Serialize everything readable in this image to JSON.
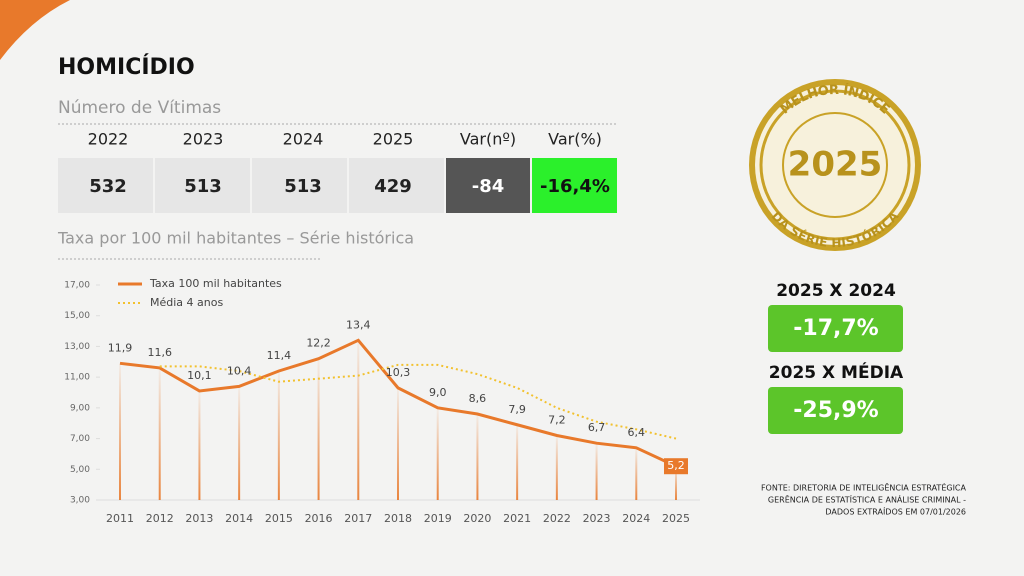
{
  "header": {
    "title": "HOMICÍDIO",
    "subtitle": "Número de Vítimas"
  },
  "table": {
    "columns": [
      "2022",
      "2023",
      "2024",
      "2025",
      "Var(nº)",
      "Var(%)"
    ],
    "row": [
      532,
      513,
      513,
      429,
      -84,
      "-16,4%"
    ]
  },
  "chart_title": "Taxa por 100 mil habitantes – Série histórica",
  "chart_data": {
    "type": "line",
    "categories": [
      "2011",
      "2012",
      "2013",
      "2014",
      "2015",
      "2016",
      "2017",
      "2018",
      "2019",
      "2020",
      "2021",
      "2022",
      "2023",
      "2024",
      "2025"
    ],
    "series": [
      {
        "name": "Taxa 100 mil habitantes",
        "color": "#e8792b",
        "style": "solid",
        "values": [
          11.9,
          11.6,
          10.1,
          10.4,
          11.4,
          12.2,
          13.4,
          10.3,
          9.0,
          8.6,
          7.9,
          7.2,
          6.7,
          6.4,
          5.2
        ],
        "value_labels": [
          "11,9",
          "11,6",
          "10,1",
          "10,4",
          "11,4",
          "12,2",
          "13,4",
          "10,3",
          "9,0",
          "8,6",
          "7,9",
          "7,2",
          "6,7",
          "6,4",
          "5,2"
        ]
      },
      {
        "name": "Média 4 anos",
        "color": "#f2c12e",
        "style": "dotted",
        "values": [
          null,
          11.7,
          11.7,
          11.4,
          10.7,
          10.9,
          11.1,
          11.8,
          11.8,
          11.2,
          10.3,
          9.0,
          8.1,
          7.6,
          7.0
        ]
      }
    ],
    "ylim": [
      3,
      17
    ],
    "yticks": [
      {
        "value": 3,
        "label": "3,00"
      },
      {
        "value": 5,
        "label": "5,00"
      },
      {
        "value": 7,
        "label": "7,00"
      },
      {
        "value": 9,
        "label": "9,00"
      },
      {
        "value": 11,
        "label": "11,00"
      },
      {
        "value": 13,
        "label": "13,00"
      },
      {
        "value": 15,
        "label": "15,00"
      },
      {
        "value": 17,
        "label": "17,00"
      }
    ],
    "legend": "top-left"
  },
  "badge": {
    "top": "MELHOR ÍNDICE",
    "year": "2025",
    "bottom": "DA SÉRIE HISTÓRICA"
  },
  "comparisons": [
    {
      "label": "2025 X 2024",
      "value": "-17,7%"
    },
    {
      "label": "2025 X MÉDIA",
      "value": "-25,9%"
    }
  ],
  "source": [
    "FONTE: DIRETORIA DE INTELIGÊNCIA ESTRATÉGICA",
    "GERÊNCIA DE ESTATÍSTICA E ANÁLISE CRIMINAL -",
    "DADOS EXTRAÍDOS EM 07/01/2026"
  ]
}
